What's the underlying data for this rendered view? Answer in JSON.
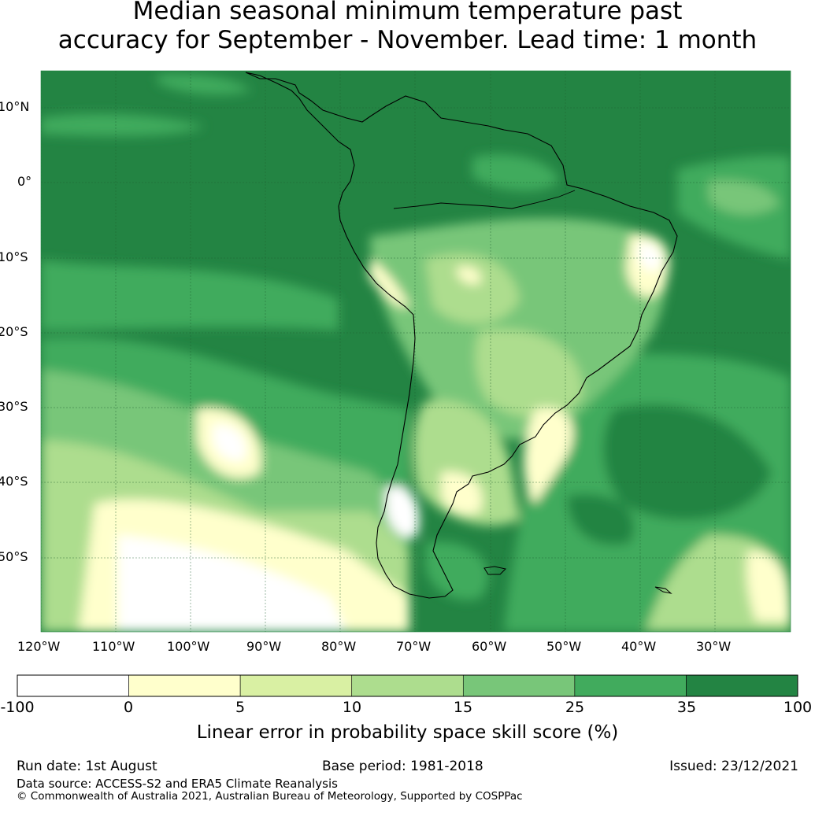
{
  "title": {
    "line1": "Median seasonal minimum temperature past",
    "line2": "accuracy for September - November. Lead time: 1 month"
  },
  "map": {
    "lat_labels": [
      "10°N",
      "0°",
      "10°S",
      "20°S",
      "30°S",
      "40°S",
      "50°S"
    ],
    "lon_labels": [
      "120°W",
      "110°W",
      "100°W",
      "90°W",
      "80°W",
      "70°W",
      "60°W",
      "50°W",
      "40°W",
      "30°W"
    ]
  },
  "colorbar": {
    "ticks": [
      "-100",
      "0",
      "5",
      "10",
      "15",
      "25",
      "35",
      "100"
    ],
    "colors": [
      "#ffffff",
      "#ffffcc",
      "#d9f0a3",
      "#addd8e",
      "#78c679",
      "#41ab5d",
      "#238443"
    ],
    "label": "Linear error in probability space skill score (%)"
  },
  "footer": {
    "run_date": "Run date: 1st August",
    "base_period": "Base period: 1981-2018",
    "issued": "Issued: 23/12/2021",
    "data_source": "Data source: ACCESS-S2 and ERA5 Climate Reanalysis",
    "copyright": "© Commonwealth of Australia 2021, Australian Bureau of Meteorology, Supported by COSPPac"
  }
}
